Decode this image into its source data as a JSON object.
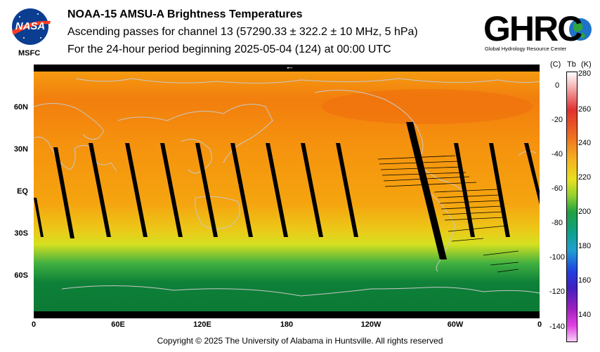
{
  "header": {
    "logo_left_text": "NASA",
    "logo_left_sub": "MSFC",
    "title": "NOAA-15 AMSU-A Brightness Temperatures",
    "subtitle": "Ascending passes for channel 13 (57290.33 ± 322.2 ± 10 MHz, 5 hPa)",
    "period": "For the 24-hour period beginning 2025-05-04 (124) at 00:00 UTC",
    "logo_right_text": "GHRC",
    "logo_right_sub": "Global Hydrology Resource Center"
  },
  "map": {
    "lat_labels": [
      "60N",
      "30N",
      "EQ",
      "30S",
      "60S"
    ],
    "lon_labels": [
      "0",
      "60E",
      "120E",
      "180",
      "120W",
      "60W",
      "0"
    ],
    "arrow_glyph": "←"
  },
  "colorbar": {
    "unit_c": "(C)",
    "unit_tb": "Tb",
    "unit_k": "(K)",
    "celsius_ticks": [
      "0",
      "-20",
      "-40",
      "-60",
      "-80",
      "-100",
      "-120",
      "-140"
    ],
    "kelvin_ticks": [
      "280",
      "260",
      "240",
      "220",
      "200",
      "180",
      "160",
      "140"
    ]
  },
  "footer": {
    "copyright": "Copyright © 2025 The University of Alabama in Huntsville.  All rights reserved"
  },
  "colors": {
    "warm": "#f07a10",
    "orange": "#f6a010",
    "yellow": "#e8e020",
    "green": "#1a9a40",
    "dark_green": "#0a7030",
    "coast": "#c8c8c8"
  }
}
